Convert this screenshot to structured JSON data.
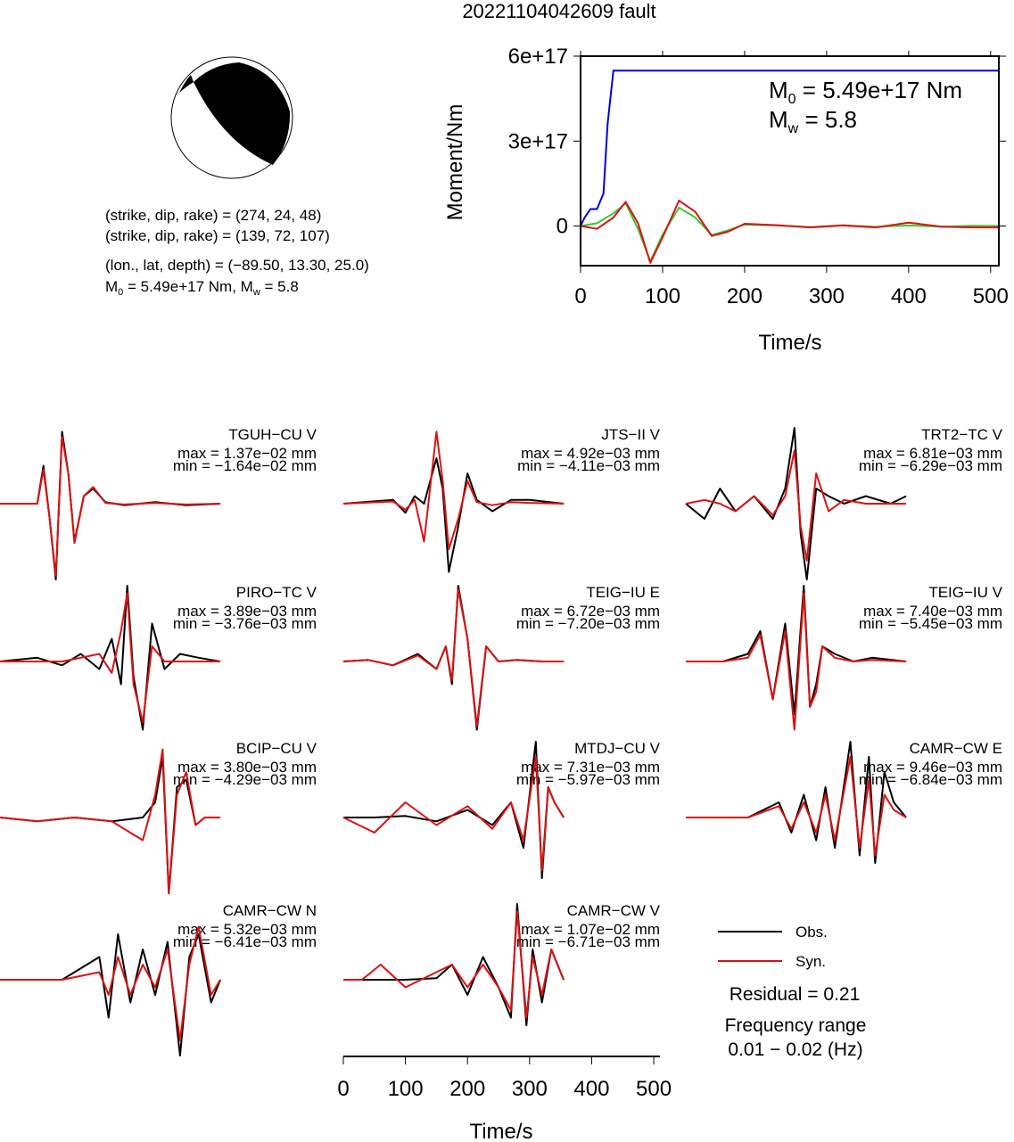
{
  "title": "20221104042609 fault",
  "colors": {
    "obs": "#000000",
    "syn": "#dd1111",
    "moment_rate_obs": "#33cc33",
    "cumulative": "#0000dd"
  },
  "mechanism": {
    "lines": [
      "(strike, dip, rake) = (274, 24, 48)",
      "(strike, dip, rake) = (139, 72, 107)",
      "(lon., lat, depth) = (−89.50, 13.30, 25.0)"
    ],
    "m0_prefix": "M",
    "m0_sub": "0",
    "m0_rest": " = 5.49e+17 Nm, M",
    "mw_sub": "w",
    "mw_rest": " = 5.8"
  },
  "moment_chart": {
    "m0_label": {
      "main": "M",
      "sub": "0",
      "rest": " = 5.49e+17 Nm"
    },
    "mw_label": {
      "main": "M",
      "sub": "w",
      "rest": " = 5.8"
    }
  },
  "legend": {
    "obs": "Obs.",
    "syn": "Syn."
  },
  "residual": "Residual = 0.21",
  "freq_title": "Frequency range",
  "freq_value": "0.01 − 0.02 (Hz)",
  "chart_data": [
    {
      "type": "line",
      "title": "",
      "ylabel": "Moment/Nm",
      "xlabel": "Time/s",
      "xlim": [
        0,
        510
      ],
      "ylim": [
        -1.4e+17,
        6e+17
      ],
      "xticks": [
        0,
        100,
        200,
        300,
        400,
        500
      ],
      "xtick_labels": [
        "0",
        "100",
        "200",
        "300",
        "400",
        "500"
      ],
      "yticks": [
        0,
        3e+17,
        6e+17
      ],
      "ytick_labels": [
        "0",
        "3e+17",
        "6e+17"
      ],
      "series": [
        {
          "name": "",
          "color": "#0000dd",
          "x": [
            0,
            5,
            12,
            20,
            28,
            33,
            40,
            510
          ],
          "y": [
            0,
            3e+16,
            6e+16,
            6e+16,
            1.15e+17,
            3.6e+17,
            5.49e+17,
            5.49e+17
          ]
        },
        {
          "name": "",
          "color": "#33cc33",
          "x": [
            0,
            20,
            40,
            55,
            70,
            85,
            100,
            120,
            140,
            160,
            180,
            200,
            240,
            280,
            320,
            360,
            400,
            440,
            480,
            510
          ],
          "y": [
            0,
            1e+16,
            4.5e+16,
            8e+16,
            -1e+16,
            -1.25e+17,
            -3e+16,
            6.5e+16,
            3e+16,
            -3.2e+16,
            -1.5e+16,
            5000000000000000.0,
            2000000000000000.0,
            -4000000000000000.0,
            3000000000000000.0,
            -3000000000000000.0,
            2000000000000000.0,
            -2000000000000000.0,
            1000000000000000.0,
            0
          ]
        },
        {
          "name": "",
          "color": "#dd1111",
          "x": [
            0,
            20,
            40,
            55,
            70,
            85,
            100,
            120,
            140,
            160,
            180,
            200,
            240,
            280,
            320,
            360,
            400,
            440,
            480,
            510
          ],
          "y": [
            0,
            -1e+16,
            3e+16,
            8.5e+16,
            1e+16,
            -1.3e+17,
            -4e+16,
            9e+16,
            5e+16,
            -3.5e+16,
            -2e+16,
            8000000000000000.0,
            3000000000000000.0,
            -5000000000000000.0,
            2000000000000000.0,
            -5000000000000000.0,
            1.2e+16,
            -2000000000000000.0,
            -5000000000000000.0,
            -5000000000000000.0
          ]
        }
      ]
    },
    {
      "type": "line",
      "title": "",
      "xlabel": "Time/s",
      "xlim": [
        0,
        510
      ],
      "xticks": [
        0,
        100,
        200,
        300,
        400,
        500
      ],
      "xtick_labels": [
        "0",
        "100",
        "200",
        "300",
        "400",
        "500"
      ],
      "ylim": [
        -1,
        1
      ],
      "stations": [
        {
          "label": "TGUH−CU V",
          "max": "max = 1.37e−02 mm",
          "min": "min = −1.64e−02 mm",
          "obs_x": [
            0,
            60,
            70,
            80,
            90,
            100,
            110,
            120,
            135,
            150,
            170,
            200,
            250,
            300,
            355
          ],
          "obs_y": [
            0,
            0,
            0.5,
            -0.2,
            -1,
            0.95,
            0.4,
            -0.5,
            0.1,
            0.2,
            0.02,
            -0.02,
            0.02,
            -0.02,
            0
          ],
          "syn_x": [
            0,
            60,
            70,
            80,
            90,
            100,
            110,
            120,
            135,
            150,
            170,
            200,
            250,
            300,
            355
          ],
          "syn_y": [
            0,
            0,
            0.45,
            -0.2,
            -0.95,
            0.88,
            0.4,
            -0.52,
            0.1,
            0.22,
            0.01,
            -0.01,
            0.01,
            -0.01,
            0
          ]
        },
        {
          "label": "JTS−II V",
          "max": "max = 4.92e−03 mm",
          "min": "min = −4.11e−03 mm",
          "obs_x": [
            0,
            80,
            100,
            115,
            130,
            150,
            160,
            170,
            185,
            200,
            215,
            240,
            270,
            300,
            355
          ],
          "obs_y": [
            0,
            0.05,
            -0.12,
            0.1,
            0,
            0.6,
            0.2,
            -0.9,
            -0.3,
            0.4,
            0.05,
            -0.1,
            0.05,
            0.05,
            0
          ],
          "syn_x": [
            0,
            80,
            100,
            115,
            130,
            150,
            160,
            170,
            185,
            200,
            215,
            240,
            270,
            300,
            355
          ],
          "syn_y": [
            0,
            0.03,
            -0.08,
            0.05,
            -0.5,
            0.95,
            0.3,
            -0.6,
            -0.2,
            0.3,
            0.02,
            -0.02,
            0.02,
            0.01,
            0
          ]
        },
        {
          "label": "TRT2−TC V",
          "max": "max = 6.81e−03 mm",
          "min": "min = −6.29e−03 mm",
          "obs_x": [
            0,
            30,
            55,
            80,
            110,
            140,
            160,
            175,
            185,
            195,
            210,
            230,
            255,
            290,
            330,
            355
          ],
          "obs_y": [
            0,
            -0.2,
            0.2,
            -0.1,
            0.1,
            -0.2,
            0.2,
            1,
            -0.4,
            -1,
            0.2,
            0.1,
            0,
            0.1,
            0,
            0.1
          ],
          "syn_x": [
            0,
            30,
            55,
            80,
            110,
            140,
            160,
            175,
            185,
            195,
            210,
            230,
            255,
            290,
            330,
            355
          ],
          "syn_y": [
            0,
            0.05,
            0,
            -0.1,
            0.1,
            -0.15,
            0.1,
            0.7,
            -0.3,
            -0.75,
            0.4,
            -0.1,
            0.05,
            0,
            0,
            0
          ]
        },
        {
          "label": "PIRO−TC V",
          "max": "max = 3.89e−03 mm",
          "min": "min = −3.76e−03 mm",
          "obs_x": [
            0,
            60,
            100,
            130,
            160,
            180,
            195,
            205,
            215,
            230,
            245,
            265,
            290,
            320,
            355
          ],
          "obs_y": [
            0,
            0.05,
            -0.05,
            0.1,
            -0.1,
            0.3,
            -0.3,
            1,
            -0.2,
            -0.9,
            0.5,
            -0.1,
            0.1,
            0.05,
            0
          ],
          "syn_x": [
            0,
            60,
            100,
            130,
            160,
            180,
            195,
            205,
            215,
            230,
            245,
            265,
            290,
            320,
            355
          ],
          "syn_y": [
            0,
            0,
            0,
            0.05,
            0.1,
            -0.15,
            0.4,
            0.9,
            -0.3,
            -0.8,
            0.2,
            0,
            0,
            0,
            0
          ]
        },
        {
          "label": "TEIG−IU E",
          "max": "max = 6.72e−03 mm",
          "min": "min = −7.20e−03 mm",
          "obs_x": [
            0,
            40,
            80,
            120,
            150,
            165,
            175,
            185,
            200,
            215,
            230,
            250,
            280,
            320,
            355
          ],
          "obs_y": [
            0,
            0.02,
            -0.05,
            0.1,
            -0.1,
            0.2,
            -0.3,
            1,
            0.3,
            -0.9,
            0.2,
            0,
            0.02,
            0,
            0
          ],
          "syn_x": [
            0,
            40,
            80,
            120,
            150,
            165,
            175,
            185,
            200,
            215,
            230,
            250,
            280,
            320,
            355
          ],
          "syn_y": [
            0,
            0.02,
            -0.05,
            0.08,
            -0.1,
            0.2,
            -0.25,
            0.95,
            0.3,
            -0.85,
            0.2,
            0,
            0.02,
            0,
            0
          ]
        },
        {
          "label": "TEIG−IU V",
          "max": "max = 7.40e−03 mm",
          "min": "min = −5.45e−03 mm",
          "obs_x": [
            0,
            60,
            100,
            120,
            140,
            160,
            175,
            190,
            200,
            210,
            220,
            240,
            270,
            300,
            355
          ],
          "obs_y": [
            0,
            0,
            0.1,
            0.4,
            -0.5,
            0.5,
            -0.7,
            1,
            -0.6,
            -0.3,
            0.2,
            0.1,
            0,
            0.05,
            0
          ],
          "syn_x": [
            0,
            60,
            100,
            120,
            140,
            160,
            175,
            190,
            200,
            210,
            220,
            240,
            270,
            300,
            355
          ],
          "syn_y": [
            0,
            0,
            0.05,
            0.35,
            -0.5,
            0.4,
            -0.9,
            0.9,
            -0.6,
            -0.4,
            0.2,
            0.05,
            0,
            0.02,
            0
          ]
        },
        {
          "label": "BCIP−CU V",
          "max": "max = 3.80e−03 mm",
          "min": "min = −4.29e−03 mm",
          "obs_x": [
            0,
            60,
            120,
            180,
            230,
            250,
            262,
            272,
            285,
            300,
            315,
            330,
            355
          ],
          "obs_y": [
            0,
            -0.05,
            0,
            -0.05,
            0,
            0.2,
            0.8,
            -1,
            0.4,
            0.5,
            -0.1,
            0,
            0
          ],
          "syn_x": [
            0,
            60,
            120,
            180,
            230,
            250,
            262,
            272,
            285,
            300,
            315,
            330,
            355
          ],
          "syn_y": [
            0,
            -0.05,
            0,
            -0.05,
            -0.3,
            0.3,
            0.9,
            -1,
            0.3,
            0.6,
            -0.1,
            0,
            0
          ]
        },
        {
          "label": "MTDJ−CU V",
          "max": "max = 7.31e−03 mm",
          "min": "min = −5.97e−03 mm",
          "obs_x": [
            0,
            50,
            100,
            150,
            200,
            240,
            270,
            290,
            310,
            320,
            330,
            340,
            355
          ],
          "obs_y": [
            0,
            0,
            0.02,
            -0.05,
            0.1,
            -0.1,
            0.2,
            -0.4,
            1,
            -0.8,
            0.4,
            0.2,
            0
          ],
          "syn_x": [
            0,
            50,
            100,
            150,
            200,
            240,
            270,
            290,
            310,
            320,
            330,
            340,
            355
          ],
          "syn_y": [
            0,
            -0.2,
            0.2,
            -0.1,
            0.15,
            -0.15,
            0.2,
            -0.3,
            0.8,
            -0.7,
            0.4,
            0.2,
            0
          ]
        },
        {
          "label": "CAMR−CW E",
          "max": "max = 9.46e−03 mm",
          "min": "min = −6.84e−03 mm",
          "obs_x": [
            0,
            100,
            150,
            170,
            190,
            210,
            225,
            240,
            265,
            280,
            295,
            305,
            320,
            335,
            355
          ],
          "obs_y": [
            0,
            0,
            0.2,
            -0.2,
            0.3,
            -0.3,
            0.4,
            -0.4,
            1,
            -0.5,
            0.8,
            -0.6,
            0.6,
            0.2,
            0
          ],
          "syn_x": [
            0,
            100,
            150,
            170,
            190,
            210,
            225,
            240,
            265,
            280,
            295,
            305,
            320,
            335,
            355
          ],
          "syn_y": [
            0,
            0,
            0.15,
            -0.15,
            0.2,
            -0.2,
            0.3,
            -0.3,
            0.8,
            -0.4,
            0.5,
            -0.5,
            0.3,
            0.1,
            0
          ]
        },
        {
          "label": "CAMR−CW N",
          "max": "max = 5.32e−03 mm",
          "min": "min = −6.41e−03 mm",
          "obs_x": [
            0,
            100,
            160,
            175,
            190,
            210,
            230,
            250,
            270,
            290,
            305,
            320,
            340,
            355
          ],
          "obs_y": [
            0,
            0,
            0.3,
            -0.5,
            0.6,
            -0.3,
            0.4,
            -0.2,
            0.5,
            -1,
            0.3,
            0.6,
            -0.3,
            0
          ],
          "syn_x": [
            0,
            100,
            160,
            175,
            190,
            210,
            230,
            250,
            270,
            290,
            305,
            320,
            340,
            355
          ],
          "syn_y": [
            0,
            0,
            0.1,
            -0.2,
            0.3,
            -0.2,
            0.2,
            -0.1,
            0.4,
            -0.8,
            0.2,
            0.7,
            -0.2,
            0
          ]
        },
        {
          "label": "CAMR−CW V",
          "max": "max = 1.07e−02 mm",
          "min": "min = −6.71e−03 mm",
          "obs_x": [
            0,
            100,
            150,
            175,
            200,
            225,
            250,
            270,
            280,
            295,
            305,
            320,
            335,
            355
          ],
          "obs_y": [
            0,
            0,
            0.02,
            0.2,
            -0.2,
            0.3,
            -0.1,
            -0.5,
            1,
            -0.6,
            0.4,
            -0.3,
            0.4,
            0
          ],
          "syn_x": [
            0,
            30,
            60,
            100,
            150,
            175,
            200,
            225,
            250,
            270,
            280,
            295,
            305,
            320,
            335,
            355
          ],
          "syn_y": [
            0,
            0,
            0.2,
            -0.1,
            0.1,
            0.2,
            -0.1,
            0.2,
            -0.1,
            -0.4,
            0.9,
            -0.5,
            0.3,
            -0.2,
            0.4,
            0
          ]
        }
      ]
    }
  ]
}
